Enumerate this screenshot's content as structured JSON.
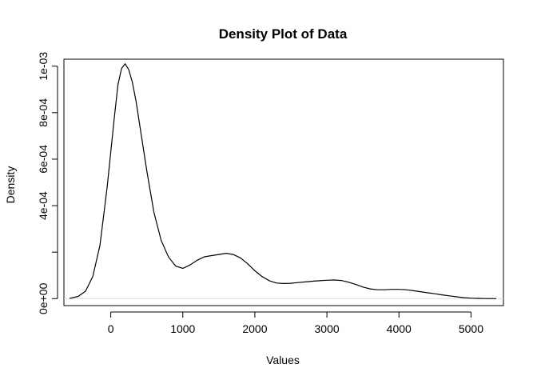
{
  "chart_data": {
    "type": "line",
    "title": "Density Plot of Data",
    "xlabel": "Values",
    "ylabel": "Density",
    "xlim": [
      -650,
      5450
    ],
    "ylim": [
      -3e-05,
      0.00103
    ],
    "x_ticks": [
      0,
      1000,
      2000,
      3000,
      4000,
      5000
    ],
    "x_tick_labels": [
      "0",
      "1000",
      "2000",
      "3000",
      "4000",
      "5000"
    ],
    "y_ticks": [
      0,
      0.0004,
      0.0006,
      0.0008,
      0.001
    ],
    "y_tick_labels": [
      "0e+00",
      "4e-04",
      "6e-04",
      "8e-04",
      "1e-03"
    ],
    "y_tick_extra_marks": [
      0.0002
    ],
    "baseline": 0,
    "grid": false,
    "series": [
      {
        "color": "#000000",
        "x": [
          -570,
          -450,
          -350,
          -250,
          -150,
          -50,
          50,
          100,
          150,
          200,
          250,
          300,
          350,
          400,
          500,
          600,
          700,
          800,
          900,
          1000,
          1100,
          1200,
          1300,
          1400,
          1500,
          1600,
          1700,
          1800,
          1900,
          2000,
          2100,
          2200,
          2300,
          2400,
          2500,
          2600,
          2700,
          2800,
          2900,
          3000,
          3100,
          3200,
          3300,
          3400,
          3500,
          3600,
          3700,
          3800,
          3900,
          4000,
          4100,
          4200,
          4300,
          4400,
          4500,
          4600,
          4700,
          4800,
          4900,
          5000,
          5100,
          5200,
          5350
        ],
        "y": [
          1e-06,
          1e-05,
          3.2e-05,
          9.5e-05,
          0.00023,
          0.00048,
          0.00078,
          0.00092,
          0.00099,
          0.00101,
          0.000985,
          0.00093,
          0.00085,
          0.00075,
          0.00055,
          0.00037,
          0.00025,
          0.00018,
          0.00014,
          0.00013,
          0.000145,
          0.000165,
          0.00018,
          0.000185,
          0.00019,
          0.000195,
          0.00019,
          0.000175,
          0.00015,
          0.00012,
          9.5e-05,
          7.7e-05,
          6.7e-05,
          6.5e-05,
          6.6e-05,
          6.9e-05,
          7.2e-05,
          7.5e-05,
          7.7e-05,
          7.9e-05,
          8e-05,
          7.8e-05,
          7.1e-05,
          6.1e-05,
          5e-05,
          4.2e-05,
          3.8e-05,
          3.8e-05,
          4e-05,
          4e-05,
          3.8e-05,
          3.4e-05,
          3e-05,
          2.5e-05,
          2.1e-05,
          1.6e-05,
          1.2e-05,
          8e-06,
          4e-06,
          2e-06,
          1e-06,
          3e-07,
          0.0
        ]
      }
    ]
  }
}
